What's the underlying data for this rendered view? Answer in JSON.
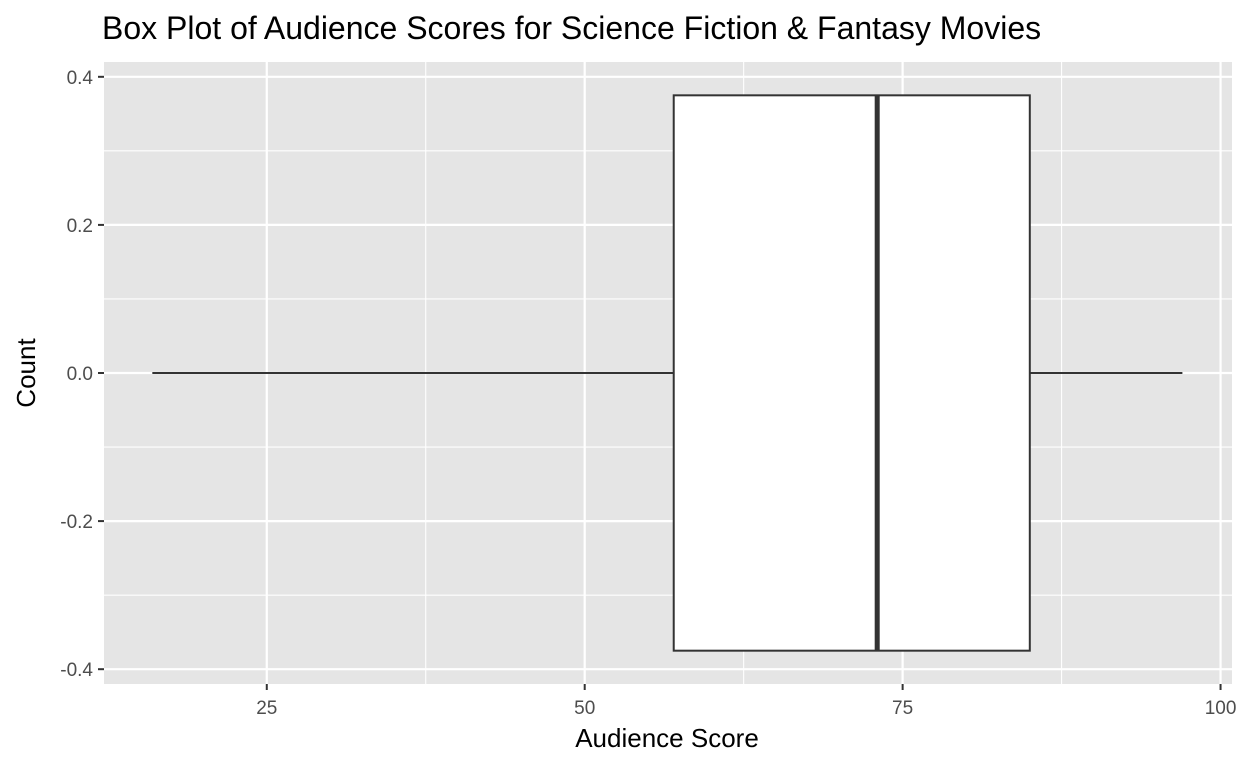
{
  "chart_data": {
    "type": "boxplot",
    "title": "Box Plot of Audience Scores for Science Fiction & Fantasy Movies",
    "xlabel": "Audience Score",
    "ylabel": "Count",
    "xlim": [
      12.2,
      100.9
    ],
    "ylim": [
      -0.42,
      0.42
    ],
    "x_ticks": [
      25,
      50,
      75,
      100
    ],
    "x_minor_ticks": [
      37.5,
      62.5,
      87.5
    ],
    "y_ticks": [
      -0.4,
      -0.2,
      0.0,
      0.2,
      0.4
    ],
    "y_tick_labels": [
      "-0.4",
      "-0.2",
      "0.0",
      "0.2",
      "0.4"
    ],
    "y_minor_ticks": [
      -0.3,
      -0.1,
      0.1,
      0.3
    ],
    "grid": true,
    "legend": "none",
    "box": {
      "min": 16,
      "q1": 57,
      "median": 73,
      "q3": 85,
      "max": 97,
      "y_center": 0.0,
      "half_width": 0.375
    },
    "colors": {
      "panel": "#e5e5e5",
      "grid": "#ffffff",
      "box_fill": "#ffffff",
      "box_stroke": "#333333"
    }
  }
}
